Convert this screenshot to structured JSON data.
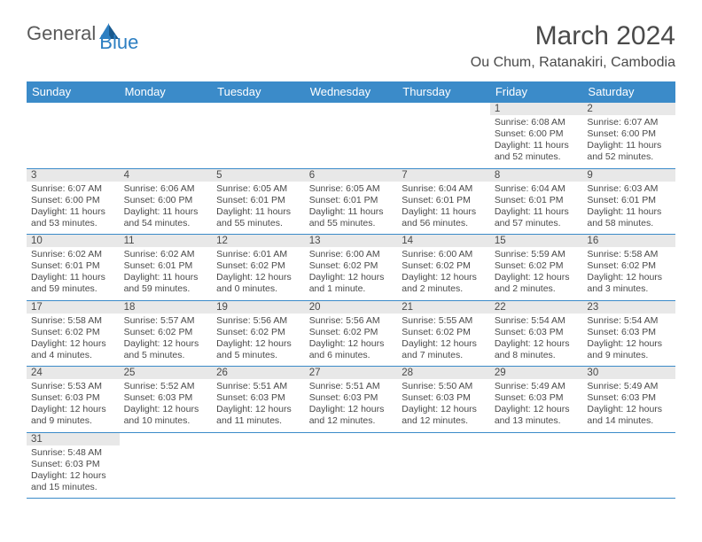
{
  "logo": {
    "textGeneral": "General",
    "textBlue": "Blue"
  },
  "header": {
    "monthTitle": "March 2024",
    "location": "Ou Chum, Ratanakiri, Cambodia"
  },
  "colors": {
    "headerBlue": "#3b8bc9",
    "grayBand": "#e8e8e8",
    "text": "#4a4a4a",
    "logoBlue": "#2d7fc2"
  },
  "dayNames": [
    "Sunday",
    "Monday",
    "Tuesday",
    "Wednesday",
    "Thursday",
    "Friday",
    "Saturday"
  ],
  "weeks": [
    {
      "nums": [
        "",
        "",
        "",
        "",
        "",
        "1",
        "2"
      ],
      "cells": [
        null,
        null,
        null,
        null,
        null,
        {
          "sunrise": "Sunrise: 6:08 AM",
          "sunset": "Sunset: 6:00 PM",
          "day1": "Daylight: 11 hours",
          "day2": "and 52 minutes."
        },
        {
          "sunrise": "Sunrise: 6:07 AM",
          "sunset": "Sunset: 6:00 PM",
          "day1": "Daylight: 11 hours",
          "day2": "and 52 minutes."
        }
      ]
    },
    {
      "nums": [
        "3",
        "4",
        "5",
        "6",
        "7",
        "8",
        "9"
      ],
      "cells": [
        {
          "sunrise": "Sunrise: 6:07 AM",
          "sunset": "Sunset: 6:00 PM",
          "day1": "Daylight: 11 hours",
          "day2": "and 53 minutes."
        },
        {
          "sunrise": "Sunrise: 6:06 AM",
          "sunset": "Sunset: 6:00 PM",
          "day1": "Daylight: 11 hours",
          "day2": "and 54 minutes."
        },
        {
          "sunrise": "Sunrise: 6:05 AM",
          "sunset": "Sunset: 6:01 PM",
          "day1": "Daylight: 11 hours",
          "day2": "and 55 minutes."
        },
        {
          "sunrise": "Sunrise: 6:05 AM",
          "sunset": "Sunset: 6:01 PM",
          "day1": "Daylight: 11 hours",
          "day2": "and 55 minutes."
        },
        {
          "sunrise": "Sunrise: 6:04 AM",
          "sunset": "Sunset: 6:01 PM",
          "day1": "Daylight: 11 hours",
          "day2": "and 56 minutes."
        },
        {
          "sunrise": "Sunrise: 6:04 AM",
          "sunset": "Sunset: 6:01 PM",
          "day1": "Daylight: 11 hours",
          "day2": "and 57 minutes."
        },
        {
          "sunrise": "Sunrise: 6:03 AM",
          "sunset": "Sunset: 6:01 PM",
          "day1": "Daylight: 11 hours",
          "day2": "and 58 minutes."
        }
      ]
    },
    {
      "nums": [
        "10",
        "11",
        "12",
        "13",
        "14",
        "15",
        "16"
      ],
      "cells": [
        {
          "sunrise": "Sunrise: 6:02 AM",
          "sunset": "Sunset: 6:01 PM",
          "day1": "Daylight: 11 hours",
          "day2": "and 59 minutes."
        },
        {
          "sunrise": "Sunrise: 6:02 AM",
          "sunset": "Sunset: 6:01 PM",
          "day1": "Daylight: 11 hours",
          "day2": "and 59 minutes."
        },
        {
          "sunrise": "Sunrise: 6:01 AM",
          "sunset": "Sunset: 6:02 PM",
          "day1": "Daylight: 12 hours",
          "day2": "and 0 minutes."
        },
        {
          "sunrise": "Sunrise: 6:00 AM",
          "sunset": "Sunset: 6:02 PM",
          "day1": "Daylight: 12 hours",
          "day2": "and 1 minute."
        },
        {
          "sunrise": "Sunrise: 6:00 AM",
          "sunset": "Sunset: 6:02 PM",
          "day1": "Daylight: 12 hours",
          "day2": "and 2 minutes."
        },
        {
          "sunrise": "Sunrise: 5:59 AM",
          "sunset": "Sunset: 6:02 PM",
          "day1": "Daylight: 12 hours",
          "day2": "and 2 minutes."
        },
        {
          "sunrise": "Sunrise: 5:58 AM",
          "sunset": "Sunset: 6:02 PM",
          "day1": "Daylight: 12 hours",
          "day2": "and 3 minutes."
        }
      ]
    },
    {
      "nums": [
        "17",
        "18",
        "19",
        "20",
        "21",
        "22",
        "23"
      ],
      "cells": [
        {
          "sunrise": "Sunrise: 5:58 AM",
          "sunset": "Sunset: 6:02 PM",
          "day1": "Daylight: 12 hours",
          "day2": "and 4 minutes."
        },
        {
          "sunrise": "Sunrise: 5:57 AM",
          "sunset": "Sunset: 6:02 PM",
          "day1": "Daylight: 12 hours",
          "day2": "and 5 minutes."
        },
        {
          "sunrise": "Sunrise: 5:56 AM",
          "sunset": "Sunset: 6:02 PM",
          "day1": "Daylight: 12 hours",
          "day2": "and 5 minutes."
        },
        {
          "sunrise": "Sunrise: 5:56 AM",
          "sunset": "Sunset: 6:02 PM",
          "day1": "Daylight: 12 hours",
          "day2": "and 6 minutes."
        },
        {
          "sunrise": "Sunrise: 5:55 AM",
          "sunset": "Sunset: 6:02 PM",
          "day1": "Daylight: 12 hours",
          "day2": "and 7 minutes."
        },
        {
          "sunrise": "Sunrise: 5:54 AM",
          "sunset": "Sunset: 6:03 PM",
          "day1": "Daylight: 12 hours",
          "day2": "and 8 minutes."
        },
        {
          "sunrise": "Sunrise: 5:54 AM",
          "sunset": "Sunset: 6:03 PM",
          "day1": "Daylight: 12 hours",
          "day2": "and 9 minutes."
        }
      ]
    },
    {
      "nums": [
        "24",
        "25",
        "26",
        "27",
        "28",
        "29",
        "30"
      ],
      "cells": [
        {
          "sunrise": "Sunrise: 5:53 AM",
          "sunset": "Sunset: 6:03 PM",
          "day1": "Daylight: 12 hours",
          "day2": "and 9 minutes."
        },
        {
          "sunrise": "Sunrise: 5:52 AM",
          "sunset": "Sunset: 6:03 PM",
          "day1": "Daylight: 12 hours",
          "day2": "and 10 minutes."
        },
        {
          "sunrise": "Sunrise: 5:51 AM",
          "sunset": "Sunset: 6:03 PM",
          "day1": "Daylight: 12 hours",
          "day2": "and 11 minutes."
        },
        {
          "sunrise": "Sunrise: 5:51 AM",
          "sunset": "Sunset: 6:03 PM",
          "day1": "Daylight: 12 hours",
          "day2": "and 12 minutes."
        },
        {
          "sunrise": "Sunrise: 5:50 AM",
          "sunset": "Sunset: 6:03 PM",
          "day1": "Daylight: 12 hours",
          "day2": "and 12 minutes."
        },
        {
          "sunrise": "Sunrise: 5:49 AM",
          "sunset": "Sunset: 6:03 PM",
          "day1": "Daylight: 12 hours",
          "day2": "and 13 minutes."
        },
        {
          "sunrise": "Sunrise: 5:49 AM",
          "sunset": "Sunset: 6:03 PM",
          "day1": "Daylight: 12 hours",
          "day2": "and 14 minutes."
        }
      ]
    },
    {
      "nums": [
        "31",
        "",
        "",
        "",
        "",
        "",
        ""
      ],
      "cells": [
        {
          "sunrise": "Sunrise: 5:48 AM",
          "sunset": "Sunset: 6:03 PM",
          "day1": "Daylight: 12 hours",
          "day2": "and 15 minutes."
        },
        null,
        null,
        null,
        null,
        null,
        null
      ]
    }
  ]
}
